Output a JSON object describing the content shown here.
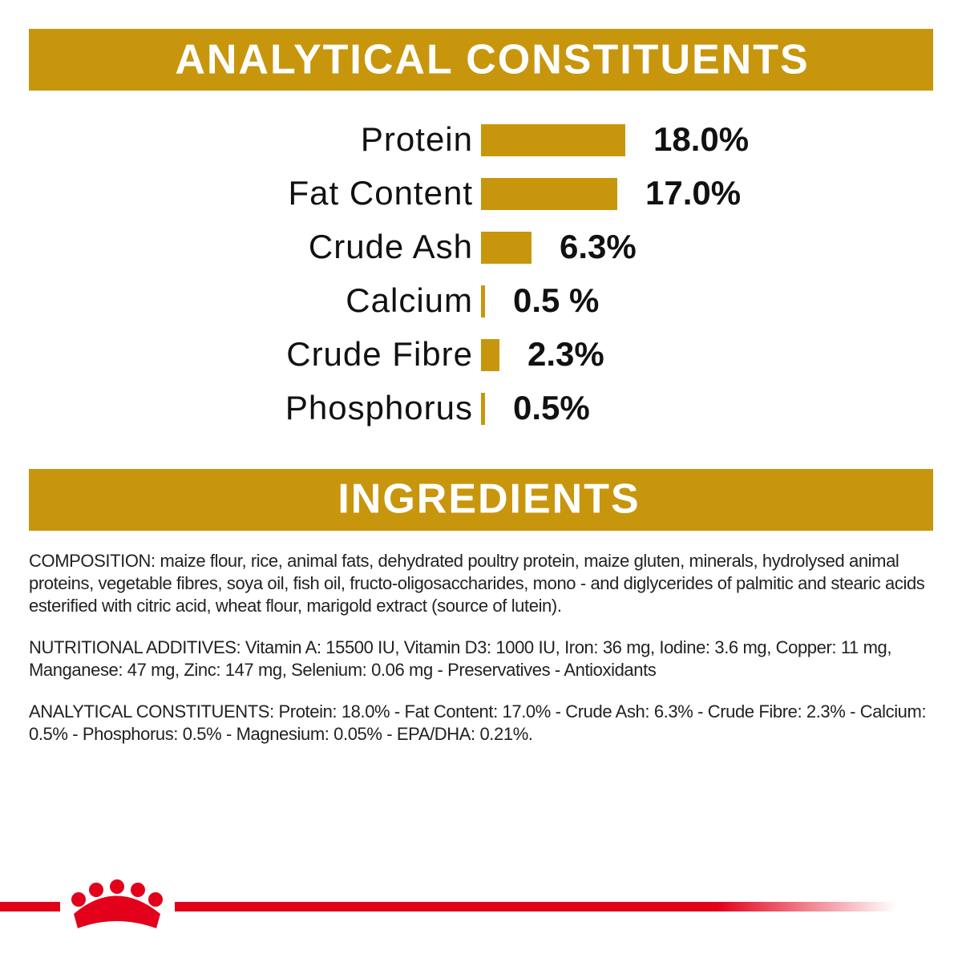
{
  "chart_data": {
    "type": "bar",
    "orientation": "horizontal",
    "title": "ANALYTICAL CONSTITUENTS",
    "categories": [
      "Protein",
      "Fat Content",
      "Crude Ash",
      "Calcium",
      "Crude Fibre",
      "Phosphorus"
    ],
    "values": [
      18.0,
      17.0,
      6.3,
      0.5,
      2.3,
      0.5
    ],
    "value_labels": [
      "18.0%",
      "17.0%",
      "6.3%",
      "0.5 %",
      "2.3%",
      "0.5%"
    ],
    "color": "#c8960c"
  },
  "ingredients": {
    "title": "INGREDIENTS",
    "paragraphs": [
      "COMPOSITION: maize flour, rice, animal fats, dehydrated poultry protein, maize gluten, minerals, hydrolysed animal proteins, vegetable fibres, soya oil, fish oil, fructo-oligosaccharides, mono - and diglycerides of palmitic and stearic acids esterified with citric acid, wheat flour, marigold extract (source of lutein).",
      "NUTRITIONAL ADDITIVES: Vitamin A: 15500 IU, Vitamin D3: 1000 IU, Iron: 36 mg, Iodine: 3.6 mg, Copper: 11 mg, Manganese: 47 mg, Zinc: 147 mg, Selenium: 0.06 mg - Preservatives - Antioxidants",
      "ANALYTICAL CONSTITUENTS: Protein: 18.0% - Fat Content: 17.0% - Crude Ash: 6.3% - Crude Fibre: 2.3% - Calcium: 0.5% - Phosphorus: 0.5% - Magnesium: 0.05% - EPA/DHA: 0.21%."
    ]
  }
}
